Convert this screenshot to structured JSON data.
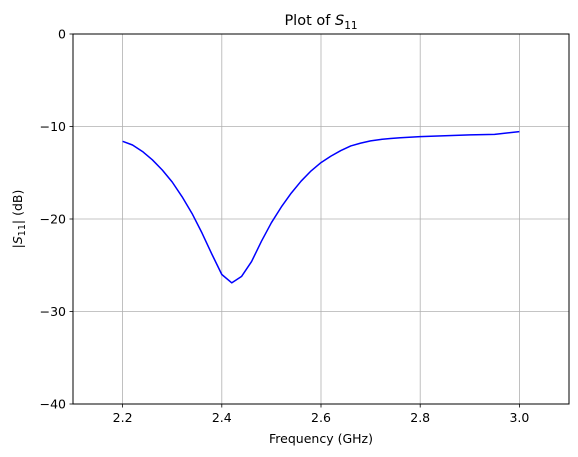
{
  "chart_data": {
    "type": "line",
    "title": {
      "prefix": "Plot of ",
      "symbol": "S",
      "subscript": "11"
    },
    "xlabel": "Frequency (GHz)",
    "ylabel": {
      "prefix": "|",
      "symbol": "S",
      "subscript": "11",
      "suffix": "| (dB)"
    },
    "xlim": [
      2.1,
      3.1
    ],
    "ylim": [
      -40,
      0
    ],
    "x_ticks": [
      2.2,
      2.4,
      2.6,
      2.8,
      3.0
    ],
    "x_tick_labels": [
      "2.2",
      "2.4",
      "2.6",
      "2.8",
      "3.0"
    ],
    "y_ticks": [
      -40,
      -30,
      -20,
      -10,
      0
    ],
    "y_tick_labels": [
      "−40",
      "−30",
      "−20",
      "−10",
      "0"
    ],
    "grid": true,
    "series": [
      {
        "color": "#0000ff",
        "x": [
          2.2,
          2.22,
          2.24,
          2.26,
          2.28,
          2.3,
          2.32,
          2.34,
          2.36,
          2.38,
          2.4,
          2.42,
          2.44,
          2.46,
          2.48,
          2.5,
          2.52,
          2.54,
          2.56,
          2.58,
          2.6,
          2.62,
          2.64,
          2.66,
          2.68,
          2.7,
          2.72,
          2.74,
          2.76,
          2.8,
          2.85,
          2.9,
          2.95,
          3.0
        ],
        "y": [
          -11.6,
          -12.0,
          -12.7,
          -13.6,
          -14.7,
          -16.0,
          -17.6,
          -19.4,
          -21.5,
          -23.8,
          -26.0,
          -26.9,
          -26.2,
          -24.6,
          -22.4,
          -20.4,
          -18.7,
          -17.2,
          -15.9,
          -14.8,
          -13.9,
          -13.2,
          -12.6,
          -12.1,
          -11.8,
          -11.55,
          -11.4,
          -11.3,
          -11.22,
          -11.1,
          -11.0,
          -10.9,
          -10.85,
          -10.55
        ]
      }
    ]
  }
}
